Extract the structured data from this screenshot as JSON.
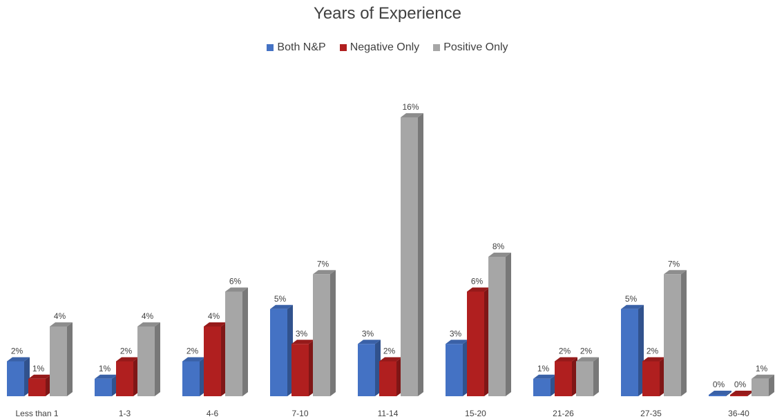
{
  "chart_data": {
    "type": "bar",
    "title": "Years of Experience",
    "xlabel": "",
    "ylabel": "",
    "ylim": [
      0,
      16
    ],
    "grid": false,
    "legend_position": "top",
    "categories": [
      "Less than 1",
      "1-3",
      "4-6",
      "7-10",
      "11-14",
      "15-20",
      "21-26",
      "27-35",
      "36-40"
    ],
    "series": [
      {
        "name": "Both N&P",
        "color": "#4472C4",
        "values": [
          2,
          1,
          2,
          5,
          3,
          3,
          1,
          5,
          0
        ],
        "labels": [
          "2%",
          "1%",
          "2%",
          "5%",
          "3%",
          "3%",
          "1%",
          "5%",
          "0%"
        ]
      },
      {
        "name": "Negative Only",
        "color": "#B01F1F",
        "values": [
          1,
          2,
          4,
          3,
          2,
          6,
          2,
          2,
          0
        ],
        "labels": [
          "1%",
          "2%",
          "4%",
          "3%",
          "2%",
          "6%",
          "2%",
          "2%",
          "0%"
        ]
      },
      {
        "name": "Positive Only",
        "color": "#A6A6A6",
        "values": [
          4,
          4,
          6,
          7,
          16,
          8,
          2,
          7,
          1
        ],
        "labels": [
          "4%",
          "4%",
          "6%",
          "7%",
          "16%",
          "8%",
          "2%",
          "7%",
          "1%"
        ]
      }
    ]
  }
}
